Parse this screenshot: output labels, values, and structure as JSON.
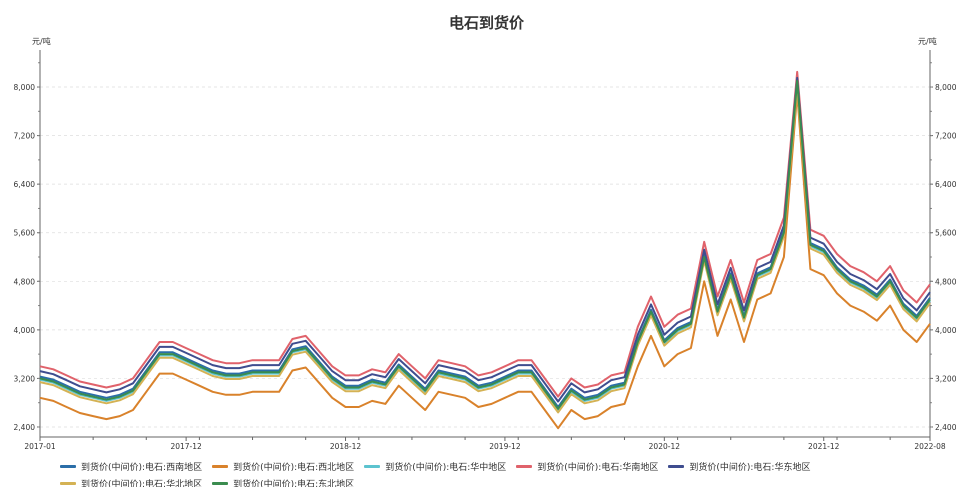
{
  "chart_data": {
    "type": "line",
    "title": "电石到货价",
    "ylabel": "元/吨",
    "ylabel_right": "元/吨",
    "ylim": [
      2235,
      8610
    ],
    "yticks": [
      2400,
      3200,
      4000,
      4800,
      5600,
      6400,
      7200,
      8000
    ],
    "ytick_labels": [
      "2,400",
      "3,200",
      "4,000",
      "4,800",
      "5,600",
      "6,400",
      "7,200",
      "8,000"
    ],
    "x_start": "2017-01",
    "x_end": "2022-08",
    "xtick_labels": [
      {
        "label": "2017-01",
        "index": 0
      },
      {
        "label": "2017-12",
        "index": 11
      },
      {
        "label": "2018-12",
        "index": 23
      },
      {
        "label": "2019-12",
        "index": 35
      },
      {
        "label": "2020-12",
        "index": 47
      },
      {
        "label": "2021-12",
        "index": 59
      },
      {
        "label": "2022-08",
        "index": 67
      }
    ],
    "grid": true,
    "legend_position": "bottom",
    "series": [
      {
        "name": "到货价(中间价):电石:西南地区",
        "color": "#2b6ea8",
        "values": [
          3230,
          3180,
          3080,
          2980,
          2930,
          2880,
          2930,
          3030,
          3330,
          3630,
          3630,
          3530,
          3430,
          3330,
          3280,
          3280,
          3330,
          3330,
          3330,
          3680,
          3730,
          3480,
          3230,
          3080,
          3080,
          3180,
          3130,
          3430,
          3230,
          3030,
          3330,
          3280,
          3230,
          3080,
          3130,
          3230,
          3330,
          3330,
          3030,
          2730,
          3030,
          2880,
          2930,
          3080,
          3130,
          3830,
          4330,
          3830,
          4030,
          4130,
          5230,
          4330,
          4930,
          4230,
          4930,
          5030,
          5630,
          8050,
          5430,
          5330,
          5030,
          4830,
          4730,
          4580,
          4830,
          4430,
          4230,
          4530
        ]
      },
      {
        "name": "到货价(中间价):电石:西北地区",
        "color": "#d9822b",
        "values": [
          2880,
          2830,
          2730,
          2630,
          2580,
          2530,
          2580,
          2680,
          2980,
          3280,
          3280,
          3180,
          3080,
          2980,
          2930,
          2930,
          2980,
          2980,
          2980,
          3330,
          3380,
          3130,
          2880,
          2730,
          2730,
          2830,
          2780,
          3080,
          2880,
          2680,
          2980,
          2930,
          2880,
          2730,
          2780,
          2880,
          2980,
          2980,
          2680,
          2380,
          2680,
          2530,
          2580,
          2730,
          2780,
          3400,
          3900,
          3400,
          3600,
          3700,
          4800,
          3900,
          4500,
          3800,
          4500,
          4600,
          5200,
          7900,
          5000,
          4900,
          4600,
          4400,
          4300,
          4150,
          4400,
          4000,
          3800,
          4100
        ]
      },
      {
        "name": "到货价(中间价):电石:华中地区",
        "color": "#5cc3cf",
        "values": [
          3180,
          3130,
          3030,
          2930,
          2880,
          2830,
          2880,
          2980,
          3280,
          3580,
          3580,
          3480,
          3380,
          3280,
          3230,
          3230,
          3280,
          3280,
          3280,
          3630,
          3680,
          3430,
          3180,
          3030,
          3030,
          3130,
          3080,
          3380,
          3180,
          2980,
          3280,
          3230,
          3180,
          3030,
          3080,
          3180,
          3280,
          3280,
          2980,
          2680,
          2980,
          2830,
          2880,
          3030,
          3080,
          3780,
          4280,
          3780,
          3980,
          4080,
          5180,
          4280,
          4880,
          4180,
          4880,
          4980,
          5580,
          8050,
          5380,
          5280,
          4980,
          4780,
          4680,
          4530,
          4780,
          4380,
          4180,
          4480
        ]
      },
      {
        "name": "到货价(中间价):电石:华南地区",
        "color": "#e0626b",
        "values": [
          3400,
          3350,
          3250,
          3150,
          3100,
          3050,
          3100,
          3200,
          3500,
          3800,
          3800,
          3700,
          3600,
          3500,
          3450,
          3450,
          3500,
          3500,
          3500,
          3850,
          3900,
          3650,
          3400,
          3250,
          3250,
          3350,
          3300,
          3600,
          3400,
          3200,
          3500,
          3450,
          3400,
          3250,
          3300,
          3400,
          3500,
          3500,
          3200,
          2900,
          3200,
          3050,
          3100,
          3250,
          3300,
          4050,
          4550,
          4050,
          4250,
          4350,
          5450,
          4550,
          5150,
          4450,
          5150,
          5250,
          5850,
          8250,
          5650,
          5550,
          5250,
          5050,
          4950,
          4800,
          5050,
          4650,
          4450,
          4750
        ]
      },
      {
        "name": "到货价(中间价):电石:华东地区",
        "color": "#3f4d8f",
        "values": [
          3320,
          3270,
          3170,
          3070,
          3020,
          2970,
          3020,
          3120,
          3420,
          3720,
          3720,
          3620,
          3520,
          3420,
          3370,
          3370,
          3420,
          3420,
          3420,
          3770,
          3820,
          3570,
          3320,
          3170,
          3170,
          3270,
          3220,
          3520,
          3320,
          3120,
          3420,
          3370,
          3320,
          3170,
          3220,
          3320,
          3420,
          3420,
          3120,
          2820,
          3120,
          2970,
          3020,
          3170,
          3220,
          3920,
          4420,
          3920,
          4120,
          4220,
          5320,
          4420,
          5020,
          4320,
          5020,
          5120,
          5720,
          8150,
          5520,
          5420,
          5120,
          4920,
          4820,
          4670,
          4920,
          4520,
          4320,
          4620
        ]
      },
      {
        "name": "到货价(中间价):电石:华北地区",
        "color": "#d4b254",
        "values": [
          3140,
          3090,
          2990,
          2890,
          2840,
          2790,
          2840,
          2940,
          3240,
          3540,
          3540,
          3440,
          3340,
          3240,
          3190,
          3190,
          3240,
          3240,
          3240,
          3590,
          3640,
          3390,
          3140,
          2990,
          2990,
          3090,
          3040,
          3340,
          3140,
          2940,
          3240,
          3190,
          3140,
          2990,
          3040,
          3140,
          3240,
          3240,
          2940,
          2640,
          2940,
          2790,
          2840,
          2990,
          3040,
          3740,
          4240,
          3740,
          3940,
          4040,
          5140,
          4240,
          4840,
          4140,
          4840,
          4940,
          5540,
          8000,
          5340,
          5240,
          4940,
          4740,
          4640,
          4490,
          4740,
          4340,
          4140,
          4440
        ]
      },
      {
        "name": "到货价(中间价):电石:东北地区",
        "color": "#3a8c4f",
        "values": [
          3200,
          3150,
          3050,
          2950,
          2900,
          2850,
          2900,
          3000,
          3300,
          3600,
          3600,
          3500,
          3400,
          3300,
          3250,
          3250,
          3300,
          3300,
          3300,
          3650,
          3700,
          3450,
          3200,
          3050,
          3050,
          3150,
          3100,
          3400,
          3200,
          3000,
          3300,
          3250,
          3200,
          3050,
          3100,
          3200,
          3300,
          3300,
          3000,
          2700,
          3000,
          2850,
          2900,
          3050,
          3100,
          3800,
          4300,
          3800,
          4000,
          4100,
          5200,
          4300,
          4900,
          4200,
          4900,
          5000,
          5600,
          8100,
          5400,
          5300,
          5000,
          4800,
          4700,
          4550,
          4800,
          4400,
          4200,
          4500
        ]
      }
    ]
  }
}
